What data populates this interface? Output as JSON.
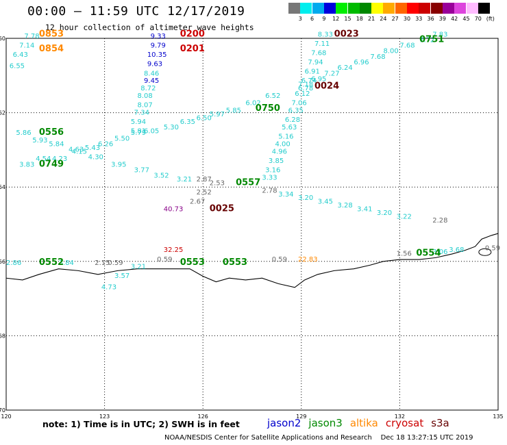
{
  "title": "00:00 – 11:59 UTC 12/17/2019",
  "subtitle": "12 hour collection of altimeter wave heights",
  "color_scale": {
    "unit": "(ft)",
    "labels": [
      "3",
      "6",
      "9",
      "12",
      "15",
      "18",
      "21",
      "24",
      "27",
      "30",
      "33",
      "36",
      "39",
      "42",
      "45",
      "70"
    ],
    "colors": [
      "#777777",
      "#00eeee",
      "#00aaee",
      "#0000dd",
      "#00ee00",
      "#00bb00",
      "#008800",
      "#ffff00",
      "#ffaa00",
      "#ff6600",
      "#ff0000",
      "#cc0000",
      "#880000",
      "#990099",
      "#dd44dd",
      "#ffbbff",
      "#000000"
    ]
  },
  "axes": {
    "lat_labels": [
      "-60",
      "-62",
      "-64",
      "-66",
      "-68",
      "-70"
    ],
    "lon_labels": [
      "120",
      "123",
      "126",
      "129",
      "132",
      "135"
    ],
    "lon_range": [
      120,
      135
    ],
    "lat_range": [
      -70,
      -60
    ]
  },
  "satellite_colors": {
    "jason2": "#0000cc",
    "jason3": "#008800",
    "altika": "#ff8800",
    "cryosat": "#cc0000",
    "s3a": "#660000",
    "swh_cyan": "#22cccc"
  },
  "track_labels": [
    {
      "text": "0853",
      "lon": 121.0,
      "lat": -59.95,
      "color": "altika"
    },
    {
      "text": "0854",
      "lon": 121.0,
      "lat": -60.35,
      "color": "altika"
    },
    {
      "text": "0200",
      "lon": 125.3,
      "lat": -59.95,
      "color": "cryosat"
    },
    {
      "text": "0201",
      "lon": 125.3,
      "lat": -60.35,
      "color": "cryosat"
    },
    {
      "text": "0023",
      "lon": 130.0,
      "lat": -59.95,
      "color": "s3a"
    },
    {
      "text": "0751",
      "lon": 132.6,
      "lat": -60.1,
      "color": "jason3"
    },
    {
      "text": "0024",
      "lon": 129.4,
      "lat": -61.35,
      "color": "s3a"
    },
    {
      "text": "0750",
      "lon": 127.6,
      "lat": -61.95,
      "color": "jason3"
    },
    {
      "text": "0556",
      "lon": 121.0,
      "lat": -62.6,
      "color": "jason3"
    },
    {
      "text": "0749",
      "lon": 121.0,
      "lat": -63.45,
      "color": "jason3"
    },
    {
      "text": "0557",
      "lon": 127.0,
      "lat": -63.95,
      "color": "jason3"
    },
    {
      "text": "0025",
      "lon": 126.2,
      "lat": -64.65,
      "color": "s3a"
    },
    {
      "text": "0552",
      "lon": 121.0,
      "lat": -66.1,
      "color": "jason3"
    },
    {
      "text": "0553",
      "lon": 125.3,
      "lat": -66.1,
      "color": "jason3"
    },
    {
      "text": "0553",
      "lon": 126.6,
      "lat": -66.1,
      "color": "jason3"
    },
    {
      "text": "0554",
      "lon": 132.5,
      "lat": -65.85,
      "color": "jason3"
    }
  ],
  "swh_values": [
    {
      "v": "7.78",
      "lon": 120.55,
      "lat": -60.0
    },
    {
      "v": "7.14",
      "lon": 120.4,
      "lat": -60.25
    },
    {
      "v": "6.43",
      "lon": 120.2,
      "lat": -60.5
    },
    {
      "v": "6.55",
      "lon": 120.1,
      "lat": -60.8
    },
    {
      "v": "9.33",
      "lon": 124.4,
      "lat": -60.0,
      "c": "jason2"
    },
    {
      "v": "9.79",
      "lon": 124.4,
      "lat": -60.25,
      "c": "jason2"
    },
    {
      "v": "10.35",
      "lon": 124.3,
      "lat": -60.5,
      "c": "jason2"
    },
    {
      "v": "9.63",
      "lon": 124.3,
      "lat": -60.75,
      "c": "jason2"
    },
    {
      "v": "8.46",
      "lon": 124.2,
      "lat": -61.0
    },
    {
      "v": "9.45",
      "lon": 124.2,
      "lat": -61.2,
      "c": "jason2"
    },
    {
      "v": "8.72",
      "lon": 124.1,
      "lat": -61.4
    },
    {
      "v": "8.08",
      "lon": 124.0,
      "lat": -61.6
    },
    {
      "v": "8.07",
      "lon": 124.0,
      "lat": -61.85
    },
    {
      "v": "7.34",
      "lon": 123.9,
      "lat": -62.05
    },
    {
      "v": "5.94",
      "lon": 123.8,
      "lat": -62.3
    },
    {
      "v": "5.81",
      "lon": 123.8,
      "lat": -62.55
    },
    {
      "v": "8.33",
      "lon": 129.5,
      "lat": -59.95
    },
    {
      "v": "7.11",
      "lon": 129.4,
      "lat": -60.2
    },
    {
      "v": "7.68",
      "lon": 129.3,
      "lat": -60.45
    },
    {
      "v": "7.94",
      "lon": 129.2,
      "lat": -60.7
    },
    {
      "v": "6.91",
      "lon": 129.1,
      "lat": -60.95
    },
    {
      "v": "6.74",
      "lon": 129.0,
      "lat": -61.2
    },
    {
      "v": "6.78",
      "lon": 128.9,
      "lat": -61.4
    },
    {
      "v": "6.12",
      "lon": 128.8,
      "lat": -61.55
    },
    {
      "v": "7.06",
      "lon": 128.7,
      "lat": -61.8
    },
    {
      "v": "6.35",
      "lon": 128.6,
      "lat": -62.0
    },
    {
      "v": "6.28",
      "lon": 128.5,
      "lat": -62.25
    },
    {
      "v": "5.63",
      "lon": 128.4,
      "lat": -62.45
    },
    {
      "v": "5.16",
      "lon": 128.3,
      "lat": -62.7
    },
    {
      "v": "4.00",
      "lon": 128.2,
      "lat": -62.9
    },
    {
      "v": "4.96",
      "lon": 128.1,
      "lat": -63.1
    },
    {
      "v": "3.85",
      "lon": 128.0,
      "lat": -63.35
    },
    {
      "v": "3.16",
      "lon": 127.9,
      "lat": -63.6
    },
    {
      "v": "3.33",
      "lon": 127.8,
      "lat": -63.8
    },
    {
      "v": "7.83",
      "lon": 133.0,
      "lat": -59.95
    },
    {
      "v": "7.72",
      "lon": 132.6,
      "lat": -60.1
    },
    {
      "v": "7.68",
      "lon": 132.0,
      "lat": -60.25
    },
    {
      "v": "8.00",
      "lon": 131.5,
      "lat": -60.4
    },
    {
      "v": "7.68",
      "lon": 131.1,
      "lat": -60.55
    },
    {
      "v": "6.96",
      "lon": 130.6,
      "lat": -60.7
    },
    {
      "v": "6.24",
      "lon": 130.1,
      "lat": -60.85
    },
    {
      "v": "7.27",
      "lon": 129.7,
      "lat": -61.0
    },
    {
      "v": "6.95",
      "lon": 129.3,
      "lat": -61.15
    },
    {
      "v": "7.18",
      "lon": 128.9,
      "lat": -61.3
    },
    {
      "v": "6.52",
      "lon": 127.9,
      "lat": -61.6
    },
    {
      "v": "6.02",
      "lon": 127.3,
      "lat": -61.8
    },
    {
      "v": "5.85",
      "lon": 126.7,
      "lat": -62.0
    },
    {
      "v": "5.97",
      "lon": 126.2,
      "lat": -62.1
    },
    {
      "v": "6.50",
      "lon": 125.8,
      "lat": -62.2
    },
    {
      "v": "6.35",
      "lon": 125.3,
      "lat": -62.3
    },
    {
      "v": "5.30",
      "lon": 124.8,
      "lat": -62.45
    },
    {
      "v": "6.05",
      "lon": 124.2,
      "lat": -62.55
    },
    {
      "v": "5.79",
      "lon": 123.8,
      "lat": -62.6
    },
    {
      "v": "5.50",
      "lon": 123.3,
      "lat": -62.75
    },
    {
      "v": "6.26",
      "lon": 122.8,
      "lat": -62.9
    },
    {
      "v": "5.43",
      "lon": 122.4,
      "lat": -63.0
    },
    {
      "v": "4.15",
      "lon": 122.0,
      "lat": -63.1
    },
    {
      "v": "4.23",
      "lon": 121.4,
      "lat": -63.3
    },
    {
      "v": "4.54",
      "lon": 120.9,
      "lat": -63.3
    },
    {
      "v": "3.83",
      "lon": 120.4,
      "lat": -63.45
    },
    {
      "v": "5.86",
      "lon": 120.3,
      "lat": -62.6
    },
    {
      "v": "5.93",
      "lon": 120.8,
      "lat": -62.8
    },
    {
      "v": "5.84",
      "lon": 121.3,
      "lat": -62.9
    },
    {
      "v": "4.63",
      "lon": 121.9,
      "lat": -63.05
    },
    {
      "v": "4.30",
      "lon": 122.5,
      "lat": -63.25
    },
    {
      "v": "3.95",
      "lon": 123.2,
      "lat": -63.45
    },
    {
      "v": "3.77",
      "lon": 123.9,
      "lat": -63.6
    },
    {
      "v": "3.52",
      "lon": 124.5,
      "lat": -63.75
    },
    {
      "v": "3.21",
      "lon": 125.2,
      "lat": -63.85
    },
    {
      "v": "2.87",
      "lon": 125.8,
      "lat": -63.85,
      "c": "grey"
    },
    {
      "v": "2.53",
      "lon": 126.2,
      "lat": -63.95,
      "c": "grey"
    },
    {
      "v": "2.52",
      "lon": 125.8,
      "lat": -64.2,
      "c": "grey"
    },
    {
      "v": "2.67",
      "lon": 125.6,
      "lat": -64.45,
      "c": "grey"
    },
    {
      "v": "2.78",
      "lon": 127.8,
      "lat": -64.15,
      "c": "grey"
    },
    {
      "v": "40.73",
      "lon": 124.8,
      "lat": -64.65,
      "c": "purple"
    },
    {
      "v": "3.34",
      "lon": 128.3,
      "lat": -64.25
    },
    {
      "v": "3.20",
      "lon": 128.9,
      "lat": -64.35
    },
    {
      "v": "3.45",
      "lon": 129.5,
      "lat": -64.45
    },
    {
      "v": "3.28",
      "lon": 130.1,
      "lat": -64.55
    },
    {
      "v": "3.41",
      "lon": 130.7,
      "lat": -64.65
    },
    {
      "v": "3.20",
      "lon": 131.3,
      "lat": -64.75
    },
    {
      "v": "3.22",
      "lon": 131.9,
      "lat": -64.85
    },
    {
      "v": "2.28",
      "lon": 133.0,
      "lat": -64.95,
      "c": "grey"
    },
    {
      "v": "32.25",
      "lon": 124.8,
      "lat": -65.75,
      "c": "cryosat"
    },
    {
      "v": "0.59",
      "lon": 124.6,
      "lat": -66.0,
      "c": "grey"
    },
    {
      "v": "0.59",
      "lon": 123.1,
      "lat": -66.1,
      "c": "grey"
    },
    {
      "v": "2.15",
      "lon": 122.7,
      "lat": -66.1,
      "c": "grey"
    },
    {
      "v": "3.21",
      "lon": 123.8,
      "lat": -66.2
    },
    {
      "v": "3.57",
      "lon": 123.3,
      "lat": -66.45
    },
    {
      "v": "4.73",
      "lon": 122.9,
      "lat": -66.75
    },
    {
      "v": "2.86",
      "lon": 120.0,
      "lat": -66.1
    },
    {
      "v": "3.84",
      "lon": 121.6,
      "lat": -66.1
    },
    {
      "v": "0.59",
      "lon": 128.1,
      "lat": -66.0,
      "c": "grey"
    },
    {
      "v": "22.83",
      "lon": 128.9,
      "lat": -66.0,
      "c": "altika"
    },
    {
      "v": "1.56",
      "lon": 131.9,
      "lat": -65.85,
      "c": "grey"
    },
    {
      "v": "3.68",
      "lon": 133.5,
      "lat": -65.75
    },
    {
      "v": "3.06",
      "lon": 133.0,
      "lat": -65.8
    },
    {
      "v": "0.59",
      "lon": 134.6,
      "lat": -65.7,
      "c": "grey"
    }
  ],
  "coastline_lonlat": [
    [
      120,
      -66.45
    ],
    [
      120.5,
      -66.5
    ],
    [
      121,
      -66.35
    ],
    [
      121.6,
      -66.2
    ],
    [
      122.2,
      -66.25
    ],
    [
      122.8,
      -66.35
    ],
    [
      123.4,
      -66.25
    ],
    [
      124,
      -66.2
    ],
    [
      124.8,
      -66.2
    ],
    [
      125.6,
      -66.2
    ],
    [
      126,
      -66.4
    ],
    [
      126.4,
      -66.55
    ],
    [
      126.8,
      -66.45
    ],
    [
      127.3,
      -66.5
    ],
    [
      127.8,
      -66.45
    ],
    [
      128.3,
      -66.6
    ],
    [
      128.8,
      -66.7
    ],
    [
      129.1,
      -66.5
    ],
    [
      129.5,
      -66.35
    ],
    [
      130,
      -66.25
    ],
    [
      130.6,
      -66.2
    ],
    [
      131.1,
      -66.1
    ],
    [
      131.5,
      -66.0
    ],
    [
      132,
      -65.95
    ],
    [
      132.6,
      -65.95
    ],
    [
      133.1,
      -65.9
    ],
    [
      133.6,
      -65.8
    ],
    [
      134,
      -65.7
    ],
    [
      134.3,
      -65.6
    ],
    [
      134.5,
      -65.4
    ],
    [
      134.8,
      -65.3
    ],
    [
      135,
      -65.25
    ]
  ],
  "note": "note: 1) Time is in UTC; 2) SWH is in feet",
  "legend": [
    {
      "label": "jason2",
      "color": "#0000cc"
    },
    {
      "label": "jason3",
      "color": "#008800"
    },
    {
      "label": "altika",
      "color": "#ff8800"
    },
    {
      "label": "cryosat",
      "color": "#cc0000"
    },
    {
      "label": "s3a",
      "color": "#660000"
    }
  ],
  "credit": "NOAA/NESDIS Center for Satellite Applications and Research    Dec 18 13:27:15 UTC 2019"
}
